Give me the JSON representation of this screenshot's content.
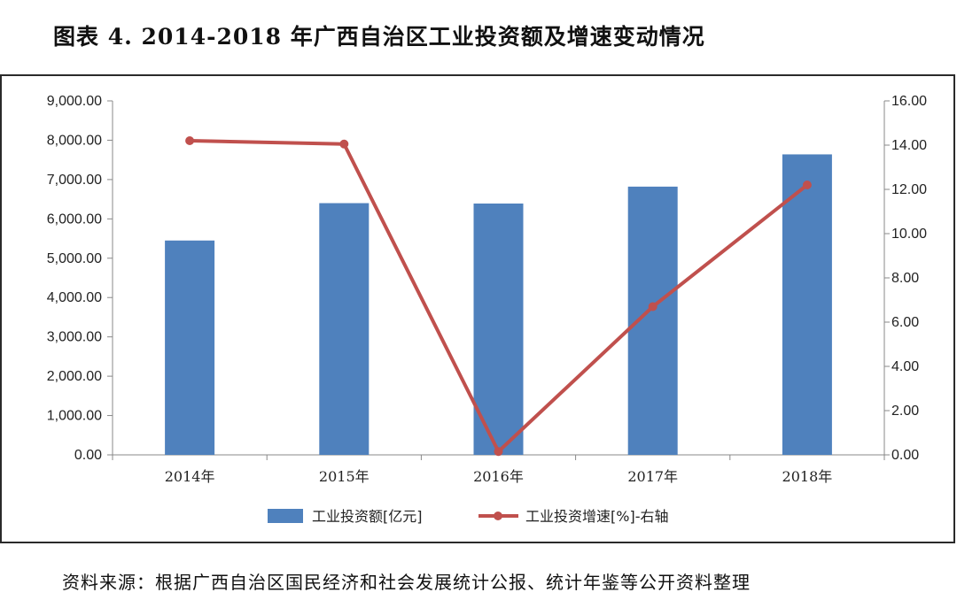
{
  "header": {
    "title": "图表 4.   2014-2018 年广西自治区工业投资额及增速变动情况"
  },
  "footer": {
    "source": "资料来源：根据广西自治区国民经济和社会发展统计公报、统计年鉴等公开资料整理"
  },
  "chart_data": {
    "type": "bar",
    "categories": [
      "2014年",
      "2015年",
      "2016年",
      "2017年",
      "2018年"
    ],
    "series": [
      {
        "name": "工业投资额[亿元]",
        "type": "bar",
        "axis": "left",
        "color": "#4F81BD",
        "values": [
          5450,
          6400,
          6390,
          6820,
          7640
        ]
      },
      {
        "name": "工业投资增速[%]-右轴",
        "type": "line",
        "axis": "right",
        "color": "#C0504D",
        "values": [
          14.2,
          14.05,
          0.15,
          6.7,
          12.2
        ]
      }
    ],
    "y_left": {
      "min": 0,
      "max": 9000,
      "step": 1000,
      "tick_labels": [
        "0.00",
        "1,000.00",
        "2,000.00",
        "3,000.00",
        "4,000.00",
        "5,000.00",
        "6,000.00",
        "7,000.00",
        "8,000.00",
        "9,000.00"
      ]
    },
    "y_right": {
      "min": 0,
      "max": 16,
      "step": 2,
      "tick_labels": [
        "0.00",
        "2.00",
        "4.00",
        "6.00",
        "8.00",
        "10.00",
        "12.00",
        "14.00",
        "16.00"
      ]
    },
    "legend": "bottom",
    "grid": false
  }
}
